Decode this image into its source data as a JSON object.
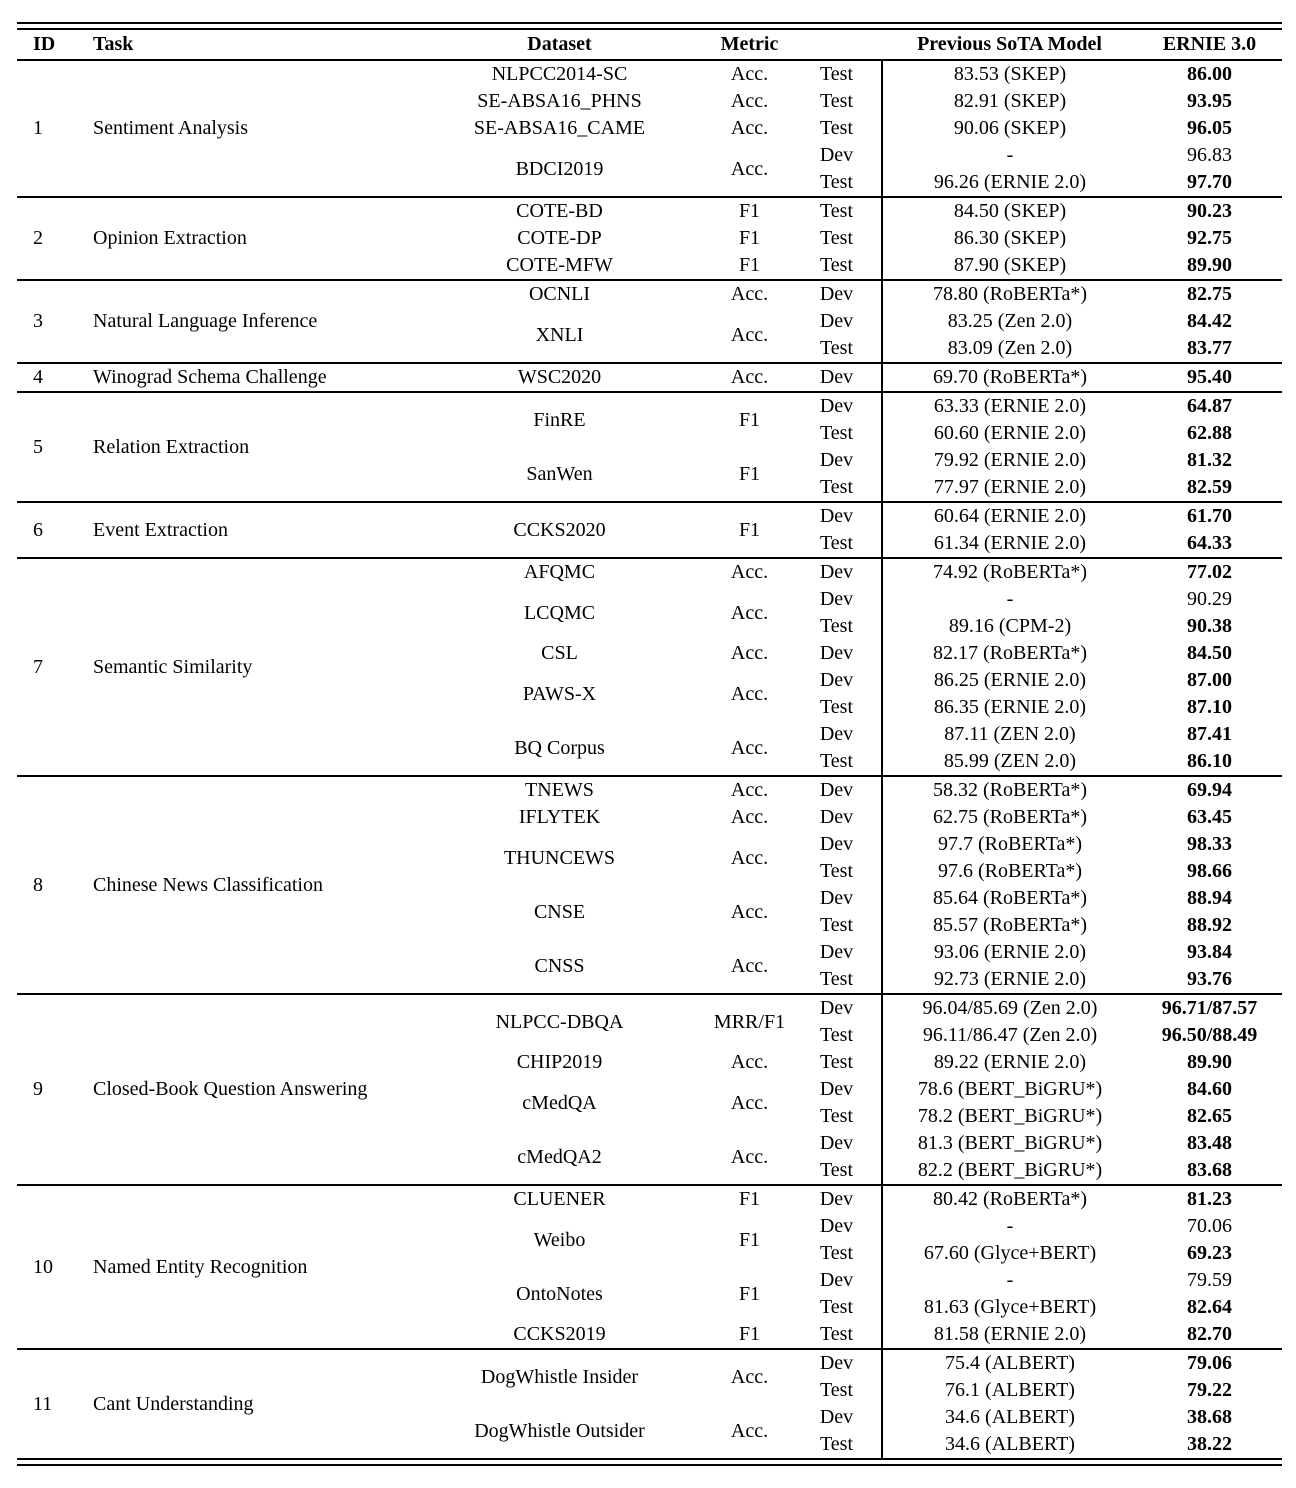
{
  "table": {
    "headers": {
      "id": "ID",
      "task": "Task",
      "dataset": "Dataset",
      "metric": "Metric",
      "split": "",
      "prev_sota": "Previous SoTA Model",
      "ernie": "ERNIE 3.0"
    },
    "sections": [
      {
        "id": "1",
        "task": "Sentiment Analysis",
        "groups": [
          {
            "dataset": "NLPCC2014-SC",
            "metric": "Acc.",
            "rows": [
              {
                "split": "Test",
                "prev_sota": "83.53 (SKEP)",
                "ernie": "86.00"
              }
            ]
          },
          {
            "dataset": "SE-ABSA16_PHNS",
            "metric": "Acc.",
            "rows": [
              {
                "split": "Test",
                "prev_sota": "82.91 (SKEP)",
                "ernie": "93.95"
              }
            ]
          },
          {
            "dataset": "SE-ABSA16_CAME",
            "metric": "Acc.",
            "rows": [
              {
                "split": "Test",
                "prev_sota": "90.06 (SKEP)",
                "ernie": "96.05"
              }
            ]
          },
          {
            "dataset": "BDCI2019",
            "metric": "Acc.",
            "rows": [
              {
                "split": "Dev",
                "prev_sota": "-",
                "ernie": "96.83",
                "ernie_bold": false
              },
              {
                "split": "Test",
                "prev_sota": "96.26 (ERNIE 2.0)",
                "ernie": "97.70"
              }
            ]
          }
        ]
      },
      {
        "id": "2",
        "task": "Opinion Extraction",
        "groups": [
          {
            "dataset": "COTE-BD",
            "metric": "F1",
            "rows": [
              {
                "split": "Test",
                "prev_sota": "84.50 (SKEP)",
                "ernie": "90.23"
              }
            ]
          },
          {
            "dataset": "COTE-DP",
            "metric": "F1",
            "rows": [
              {
                "split": "Test",
                "prev_sota": "86.30 (SKEP)",
                "ernie": "92.75"
              }
            ]
          },
          {
            "dataset": "COTE-MFW",
            "metric": "F1",
            "rows": [
              {
                "split": "Test",
                "prev_sota": "87.90 (SKEP)",
                "ernie": "89.90"
              }
            ]
          }
        ]
      },
      {
        "id": "3",
        "task": "Natural Language Inference",
        "groups": [
          {
            "dataset": "OCNLI",
            "metric": "Acc.",
            "rows": [
              {
                "split": "Dev",
                "prev_sota": "78.80 (RoBERTa*)",
                "ernie": "82.75"
              }
            ]
          },
          {
            "dataset": "XNLI",
            "metric": "Acc.",
            "rows": [
              {
                "split": "Dev",
                "prev_sota": "83.25 (Zen 2.0)",
                "ernie": "84.42"
              },
              {
                "split": "Test",
                "prev_sota": "83.09 (Zen 2.0)",
                "ernie": "83.77"
              }
            ]
          }
        ]
      },
      {
        "id": "4",
        "task": "Winograd Schema Challenge",
        "groups": [
          {
            "dataset": "WSC2020",
            "metric": "Acc.",
            "rows": [
              {
                "split": "Dev",
                "prev_sota": "69.70 (RoBERTa*)",
                "ernie": "95.40"
              }
            ]
          }
        ]
      },
      {
        "id": "5",
        "task": "Relation Extraction",
        "groups": [
          {
            "dataset": "FinRE",
            "metric": "F1",
            "rows": [
              {
                "split": "Dev",
                "prev_sota": "63.33 (ERNIE 2.0)",
                "ernie": "64.87"
              },
              {
                "split": "Test",
                "prev_sota": "60.60 (ERNIE 2.0)",
                "ernie": "62.88"
              }
            ]
          },
          {
            "dataset": "SanWen",
            "metric": "F1",
            "rows": [
              {
                "split": "Dev",
                "prev_sota": "79.92 (ERNIE 2.0)",
                "ernie": "81.32"
              },
              {
                "split": "Test",
                "prev_sota": "77.97 (ERNIE 2.0)",
                "ernie": "82.59"
              }
            ]
          }
        ]
      },
      {
        "id": "6",
        "task": "Event Extraction",
        "groups": [
          {
            "dataset": "CCKS2020",
            "metric": "F1",
            "rows": [
              {
                "split": "Dev",
                "prev_sota": "60.64 (ERNIE 2.0)",
                "ernie": "61.70"
              },
              {
                "split": "Test",
                "prev_sota": "61.34 (ERNIE 2.0)",
                "ernie": "64.33"
              }
            ]
          }
        ]
      },
      {
        "id": "7",
        "task": "Semantic Similarity",
        "groups": [
          {
            "dataset": "AFQMC",
            "metric": "Acc.",
            "rows": [
              {
                "split": "Dev",
                "prev_sota": "74.92 (RoBERTa*)",
                "ernie": "77.02"
              }
            ]
          },
          {
            "dataset": "LCQMC",
            "metric": "Acc.",
            "rows": [
              {
                "split": "Dev",
                "prev_sota": "-",
                "ernie": "90.29",
                "ernie_bold": false
              },
              {
                "split": "Test",
                "prev_sota": "89.16 (CPM-2)",
                "ernie": "90.38"
              }
            ]
          },
          {
            "dataset": "CSL",
            "metric": "Acc.",
            "rows": [
              {
                "split": "Dev",
                "prev_sota": "82.17 (RoBERTa*)",
                "ernie": "84.50"
              }
            ]
          },
          {
            "dataset": "PAWS-X",
            "metric": "Acc.",
            "rows": [
              {
                "split": "Dev",
                "prev_sota": "86.25 (ERNIE 2.0)",
                "ernie": "87.00"
              },
              {
                "split": "Test",
                "prev_sota": "86.35 (ERNIE 2.0)",
                "ernie": "87.10"
              }
            ]
          },
          {
            "dataset": "BQ Corpus",
            "metric": "Acc.",
            "rows": [
              {
                "split": "Dev",
                "prev_sota": "87.11 (ZEN 2.0)",
                "ernie": "87.41"
              },
              {
                "split": "Test",
                "prev_sota": "85.99 (ZEN 2.0)",
                "ernie": "86.10"
              }
            ]
          }
        ]
      },
      {
        "id": "8",
        "task": "Chinese News Classification",
        "groups": [
          {
            "dataset": "TNEWS",
            "metric": "Acc.",
            "rows": [
              {
                "split": "Dev",
                "prev_sota": "58.32 (RoBERTa*)",
                "ernie": "69.94"
              }
            ]
          },
          {
            "dataset": "IFLYTEK",
            "metric": "Acc.",
            "rows": [
              {
                "split": "Dev",
                "prev_sota": "62.75 (RoBERTa*)",
                "ernie": "63.45"
              }
            ]
          },
          {
            "dataset": "THUNCEWS",
            "metric": "Acc.",
            "rows": [
              {
                "split": "Dev",
                "prev_sota": "97.7 (RoBERTa*)",
                "ernie": "98.33"
              },
              {
                "split": "Test",
                "prev_sota": "97.6 (RoBERTa*)",
                "ernie": "98.66"
              }
            ]
          },
          {
            "dataset": "CNSE",
            "metric": "Acc.",
            "rows": [
              {
                "split": "Dev",
                "prev_sota": "85.64 (RoBERTa*)",
                "ernie": "88.94"
              },
              {
                "split": "Test",
                "prev_sota": "85.57 (RoBERTa*)",
                "ernie": "88.92"
              }
            ]
          },
          {
            "dataset": "CNSS",
            "metric": "Acc.",
            "rows": [
              {
                "split": "Dev",
                "prev_sota": "93.06 (ERNIE 2.0)",
                "ernie": "93.84"
              },
              {
                "split": "Test",
                "prev_sota": "92.73 (ERNIE 2.0)",
                "ernie": "93.76"
              }
            ]
          }
        ]
      },
      {
        "id": "9",
        "task": "Closed-Book Question Answering",
        "groups": [
          {
            "dataset": "NLPCC-DBQA",
            "metric": "MRR/F1",
            "rows": [
              {
                "split": "Dev",
                "prev_sota": "96.04/85.69 (Zen 2.0)",
                "ernie": "96.71/87.57"
              },
              {
                "split": "Test",
                "prev_sota": "96.11/86.47 (Zen 2.0)",
                "ernie": "96.50/88.49"
              }
            ]
          },
          {
            "dataset": "CHIP2019",
            "metric": "Acc.",
            "rows": [
              {
                "split": "Test",
                "prev_sota": "89.22 (ERNIE 2.0)",
                "ernie": "89.90"
              }
            ]
          },
          {
            "dataset": "cMedQA",
            "metric": "Acc.",
            "rows": [
              {
                "split": "Dev",
                "prev_sota": "78.6 (BERT_BiGRU*)",
                "ernie": "84.60"
              },
              {
                "split": "Test",
                "prev_sota": "78.2 (BERT_BiGRU*)",
                "ernie": "82.65"
              }
            ]
          },
          {
            "dataset": "cMedQA2",
            "metric": "Acc.",
            "rows": [
              {
                "split": "Dev",
                "prev_sota": "81.3 (BERT_BiGRU*)",
                "ernie": "83.48"
              },
              {
                "split": "Test",
                "prev_sota": "82.2 (BERT_BiGRU*)",
                "ernie": "83.68"
              }
            ]
          }
        ]
      },
      {
        "id": "10",
        "task": "Named Entity Recognition",
        "groups": [
          {
            "dataset": "CLUENER",
            "metric": "F1",
            "rows": [
              {
                "split": "Dev",
                "prev_sota": "80.42 (RoBERTa*)",
                "ernie": "81.23"
              }
            ]
          },
          {
            "dataset": "Weibo",
            "metric": "F1",
            "rows": [
              {
                "split": "Dev",
                "prev_sota": "-",
                "ernie": "70.06",
                "ernie_bold": false
              },
              {
                "split": "Test",
                "prev_sota": "67.60 (Glyce+BERT)",
                "ernie": "69.23"
              }
            ]
          },
          {
            "dataset": "OntoNotes",
            "metric": "F1",
            "rows": [
              {
                "split": "Dev",
                "prev_sota": "-",
                "ernie": "79.59",
                "ernie_bold": false
              },
              {
                "split": "Test",
                "prev_sota": "81.63 (Glyce+BERT)",
                "ernie": "82.64"
              }
            ]
          },
          {
            "dataset": "CCKS2019",
            "metric": "F1",
            "rows": [
              {
                "split": "Test",
                "prev_sota": "81.58 (ERNIE 2.0)",
                "ernie": "82.70"
              }
            ]
          }
        ]
      },
      {
        "id": "11",
        "task": "Cant Understanding",
        "groups": [
          {
            "dataset": "DogWhistle Insider",
            "metric": "Acc.",
            "rows": [
              {
                "split": "Dev",
                "prev_sota": "75.4 (ALBERT)",
                "ernie": "79.06"
              },
              {
                "split": "Test",
                "prev_sota": "76.1 (ALBERT)",
                "ernie": "79.22"
              }
            ]
          },
          {
            "dataset": "DogWhistle Outsider",
            "metric": "Acc.",
            "rows": [
              {
                "split": "Dev",
                "prev_sota": "34.6 (ALBERT)",
                "ernie": "38.68"
              },
              {
                "split": "Test",
                "prev_sota": "34.6 (ALBERT)",
                "ernie": "38.22"
              }
            ]
          }
        ]
      }
    ]
  }
}
